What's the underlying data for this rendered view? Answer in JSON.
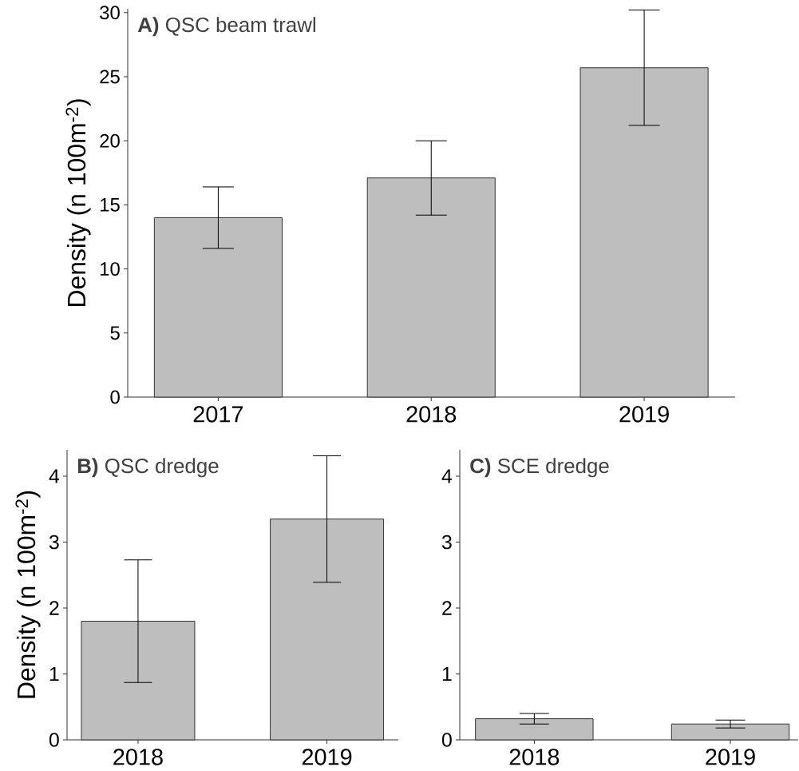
{
  "chart_data": [
    {
      "type": "bar",
      "title": "**A)** QSC beam trawl",
      "ylabel": "Density (n 100m$^{-2}$)",
      "categories": [
        "2017",
        "2018",
        "2019"
      ],
      "values": [
        14.0,
        17.1,
        25.7
      ],
      "errors": [
        2.4,
        2.9,
        4.5
      ],
      "color": "#bebebe",
      "ylim": [
        0,
        30.3
      ],
      "yticks": [
        0,
        5,
        10,
        15,
        20,
        25,
        30
      ]
    },
    {
      "type": "bar",
      "title": "**B)** QSC dredge",
      "ylabel": "Density (n 100m$^{-2}$)",
      "categories": [
        "2018",
        "2019"
      ],
      "values": [
        1.8,
        3.35
      ],
      "errors": [
        0.93,
        0.96
      ],
      "color": "#bebebe",
      "ylim": [
        0,
        4.4
      ],
      "yticks": [
        0,
        1,
        2,
        3,
        4
      ]
    },
    {
      "type": "bar",
      "title": "**C)** SCE dredge",
      "categories": [
        "2018",
        "2019"
      ],
      "values": [
        0.32,
        0.24
      ],
      "errors": [
        0.08,
        0.06
      ],
      "color": "#bebebe",
      "ylim": [
        0,
        4.4
      ],
      "yticks": [
        0,
        1,
        2,
        3,
        4
      ]
    }
  ]
}
